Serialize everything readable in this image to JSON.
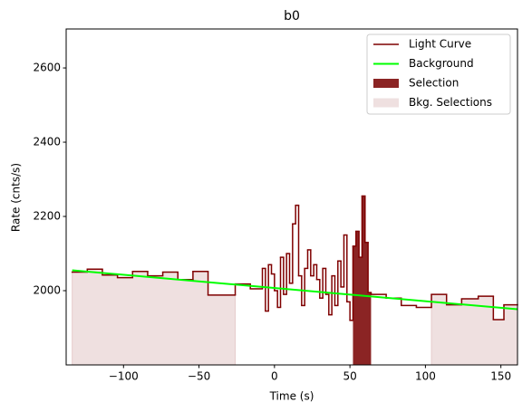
{
  "chart_data": {
    "type": "lightcurve",
    "title": "b0",
    "xlabel": "Time (s)",
    "ylabel": "Rate (cnts/s)",
    "xlim": [
      -138,
      161
    ],
    "ylim": [
      1800,
      2705
    ],
    "xticks": [
      {
        "value": -100,
        "label": "−100"
      },
      {
        "value": -50,
        "label": "−50"
      },
      0,
      50,
      100,
      150
    ],
    "yticks": [
      2000,
      2200,
      2400,
      2600
    ],
    "legend": "upper right",
    "series": [
      {
        "name": "Light Curve",
        "color": "#7f0000",
        "bins": [
          -134,
          -124,
          -114,
          -104,
          -94,
          -84,
          -74,
          -64,
          -54,
          -44,
          -26,
          -16,
          -8,
          -6,
          -4,
          -2,
          0,
          2,
          4,
          6,
          8,
          10,
          12,
          14,
          16,
          18,
          20,
          22,
          24,
          26,
          28,
          30,
          32,
          34,
          36,
          38,
          40,
          42,
          44,
          46,
          48,
          50,
          52,
          54,
          56,
          58,
          60,
          62,
          64,
          74,
          84,
          94,
          104,
          114,
          124,
          135,
          145,
          152,
          161
        ],
        "values": [
          2050,
          2058,
          2042,
          2035,
          2052,
          2040,
          2050,
          2030,
          2052,
          1988,
          2018,
          2005,
          2060,
          1945,
          2070,
          2045,
          2000,
          1955,
          2090,
          1990,
          2100,
          2020,
          2180,
          2230,
          2040,
          1960,
          2060,
          2110,
          2040,
          2070,
          2030,
          1980,
          2060,
          1990,
          1935,
          2040,
          1960,
          2080,
          2010,
          2150,
          1970,
          1920,
          2120,
          2160,
          2090,
          2255,
          2130,
          1995,
          1990,
          1980,
          1960,
          1955,
          1990,
          1962,
          1978,
          1985,
          1922,
          1962
        ]
      },
      {
        "name": "Background",
        "color": "#00ff00",
        "x": [
          -134,
          161
        ],
        "values": [
          2055,
          1950
        ]
      }
    ],
    "selection": {
      "name": "Selection",
      "color": "#8b2424",
      "range": [
        52,
        64
      ]
    },
    "bkg_selections": {
      "name": "Bkg. Selections",
      "color": "#efe0e0",
      "ranges": [
        [
          -138,
          -26
        ],
        [
          104,
          161
        ]
      ]
    }
  }
}
